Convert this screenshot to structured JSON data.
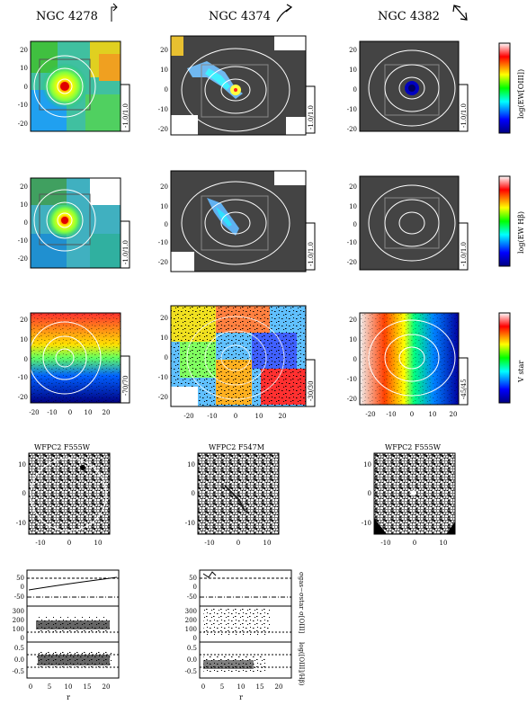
{
  "columns": [
    {
      "title": "NGC 4278"
    },
    {
      "title": "NGC 4374"
    },
    {
      "title": "NGC 4382"
    }
  ],
  "rows": {
    "row1_colorbar": "log(EW[OIII])",
    "row2_colorbar": "log(EW Hβ)",
    "row3_colorbar": "V star"
  },
  "range_labels": {
    "r1": [
      "-1.0/1.0",
      "-1.0/1.0",
      "-1.0/1.0"
    ],
    "r2": [
      "-1.0/1.0",
      "-1.0/1.0",
      "-1.0/1.0"
    ],
    "r3": [
      "-70/70",
      "-30/30",
      "-45/45"
    ]
  },
  "hst_titles": [
    "WFPC2 F555W",
    "WFPC2 F547M",
    "WFPC2 F555W"
  ],
  "axis_ticks": {
    "map_y_a": [
      "20",
      "10",
      "0",
      "-10",
      "-20"
    ],
    "map_x_c3": [
      "-20",
      "-10",
      "0",
      "10",
      "20"
    ],
    "hst_y": [
      "10",
      "0",
      "-10"
    ],
    "hst_x": [
      "-10",
      "0",
      "10"
    ],
    "prof_y1": [
      "50",
      "0",
      "-50"
    ],
    "prof_y2": [
      "300",
      "200",
      "100",
      "0"
    ],
    "prof_y3": [
      "0.5",
      "0.0",
      "-0.5"
    ],
    "prof_x": [
      "0",
      "5",
      "10",
      "15",
      "20"
    ]
  },
  "profile_labels": {
    "y1": "σgas−σstar",
    "y2": "σ[OIII]",
    "y3": "log([OIII]/Hβ)",
    "x": "r"
  }
}
